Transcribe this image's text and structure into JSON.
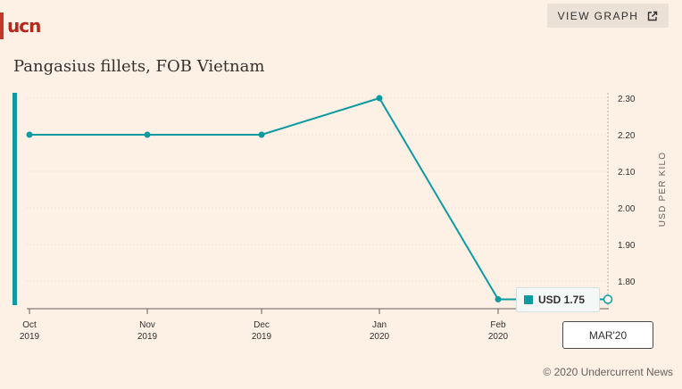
{
  "logo": {
    "text": "ucn"
  },
  "view_button": {
    "label": "VIEW GRAPH",
    "icon": "external-link-icon"
  },
  "chart_title": "Pangasius fillets, FOB Vietnam",
  "chart_data": {
    "type": "line",
    "title": "Pangasius fillets, FOB Vietnam",
    "categories": [
      [
        "Oct",
        "2019"
      ],
      [
        "Nov",
        "2019"
      ],
      [
        "Dec",
        "2019"
      ],
      [
        "Jan",
        "2020"
      ],
      [
        "Feb",
        "2020"
      ],
      [
        "Mar",
        "2020"
      ]
    ],
    "values": [
      2.2,
      2.2,
      2.2,
      2.3,
      1.75,
      1.75
    ],
    "ylabel": "USD PER KILO",
    "y_ticks": [
      "2.30",
      "2.20",
      "2.10",
      "2.00",
      "1.90",
      "1.80"
    ],
    "ylim": [
      1.75,
      2.3
    ],
    "line_color": "#0d9aa0",
    "grid": true
  },
  "tooltip": {
    "value": "USD 1.75"
  },
  "hover_date": "MAR'20",
  "copyright": "© 2020 Undercurrent News"
}
